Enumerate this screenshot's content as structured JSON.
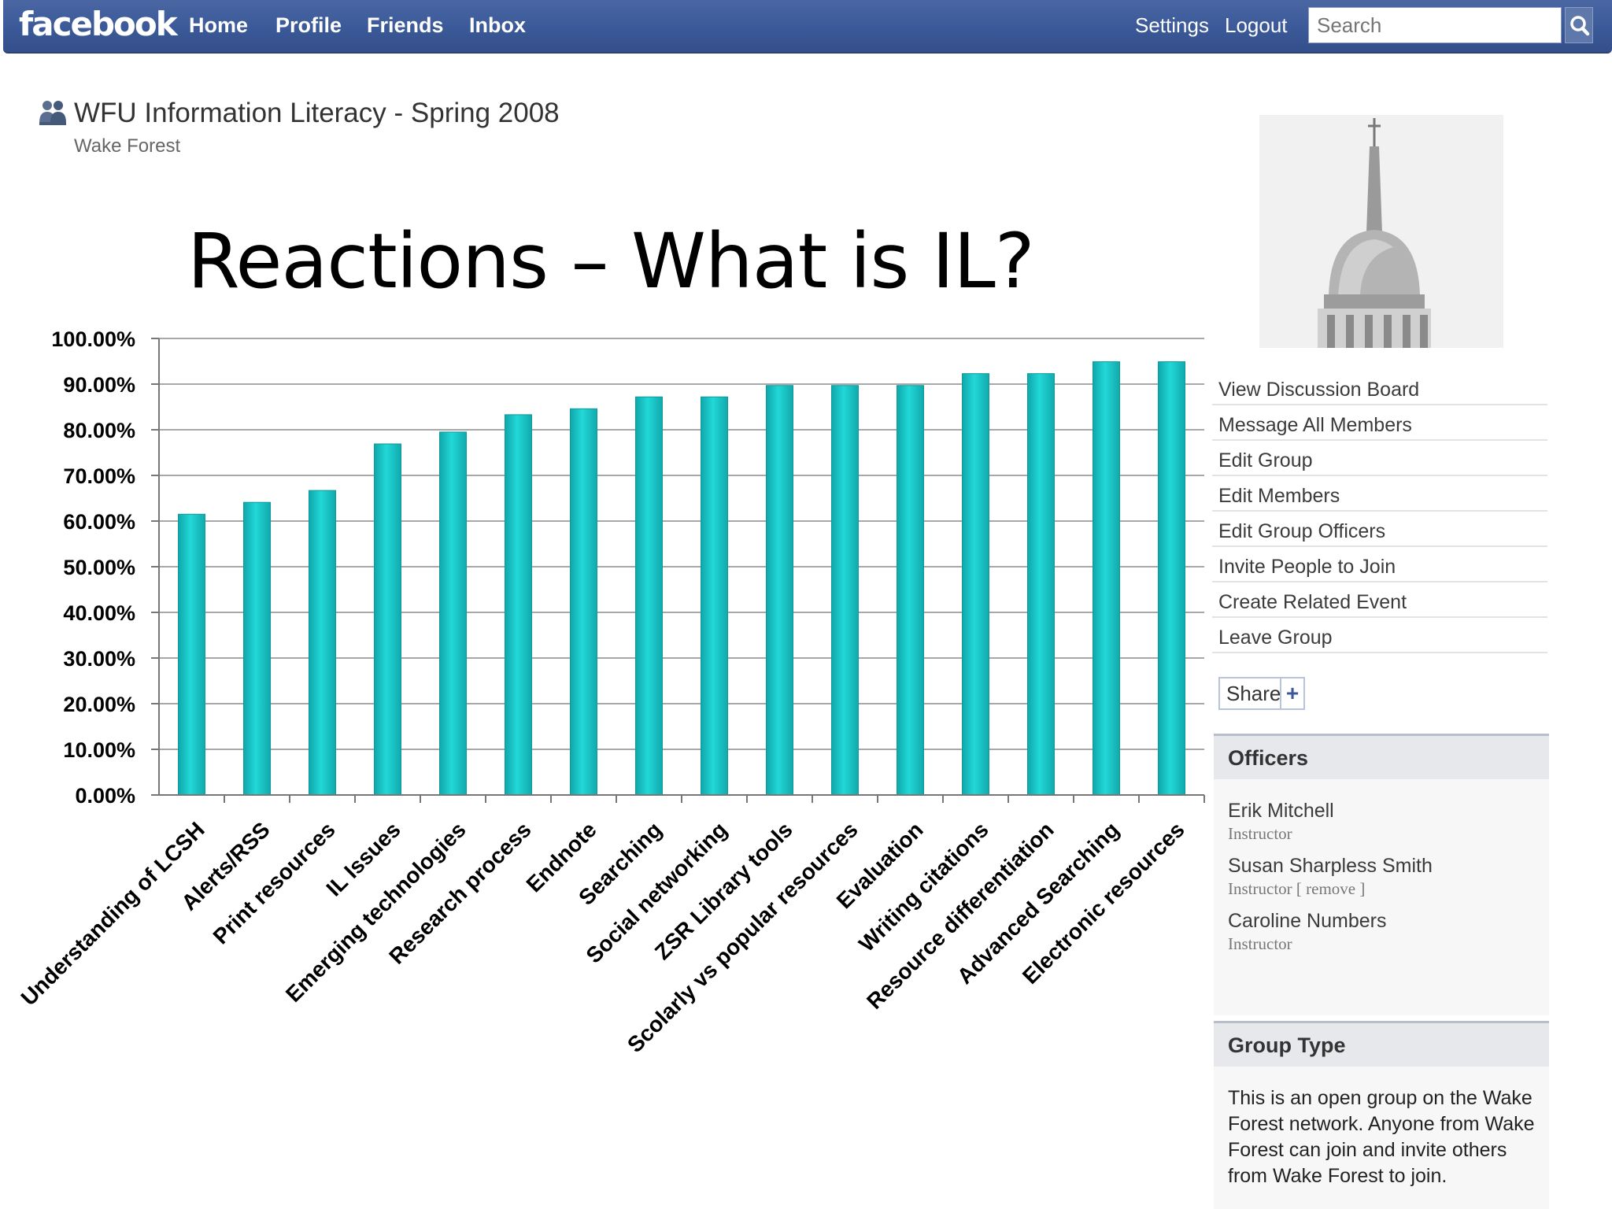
{
  "topbar": {
    "logo": "facebook",
    "nav": [
      "Home",
      "Profile",
      "Friends",
      "Inbox"
    ],
    "settings": "Settings",
    "logout": "Logout",
    "search_placeholder": "Search",
    "bar_color": "#3b5998"
  },
  "group": {
    "title": "WFU Information Literacy - Spring 2008",
    "network": "Wake Forest"
  },
  "slide": {
    "title": "Reactions – What is IL?"
  },
  "chart_data": {
    "type": "bar",
    "title": "",
    "xlabel": "",
    "ylabel": "",
    "ylim": [
      0,
      100
    ],
    "y_ticks": [
      "0.00%",
      "10.00%",
      "20.00%",
      "30.00%",
      "40.00%",
      "50.00%",
      "60.00%",
      "70.00%",
      "80.00%",
      "90.00%",
      "100.00%"
    ],
    "grid": true,
    "bar_color": "#1ec8c8",
    "categories": [
      "Understanding of LCSH",
      "Alerts/RSS",
      "Print resources",
      "IL Issues",
      "Emerging technologies",
      "Research process",
      "Endnote",
      "Searching",
      "Social networking",
      "ZSR Library tools",
      "Scolarly vs popular resources",
      "Evaluation",
      "Writing citations",
      "Resource differentiation",
      "Advanced Searching",
      "Electronic resources"
    ],
    "values": [
      61.5,
      64.1,
      66.7,
      76.9,
      79.5,
      83.3,
      84.6,
      87.2,
      87.2,
      89.7,
      89.7,
      89.7,
      92.3,
      92.3,
      94.9,
      94.9
    ]
  },
  "sidebar": {
    "actions": [
      "View Discussion Board",
      "Message All Members",
      "Edit Group",
      "Edit Members",
      "Edit Group Officers",
      "Invite People to Join",
      "Create Related Event",
      "Leave Group"
    ],
    "share": "Share",
    "share_plus": "+",
    "officers_header": "Officers",
    "officers": [
      {
        "name": "Erik Mitchell",
        "role": "Instructor"
      },
      {
        "name": "Susan Sharpless Smith",
        "role": "Instructor",
        "remove": "[ remove ]"
      },
      {
        "name": "Caroline Numbers",
        "role": "Instructor"
      }
    ],
    "group_type_header": "Group Type",
    "group_type_text": "This is an open group on the Wake Forest network. Anyone from Wake Forest can join and invite others from Wake Forest to join."
  }
}
